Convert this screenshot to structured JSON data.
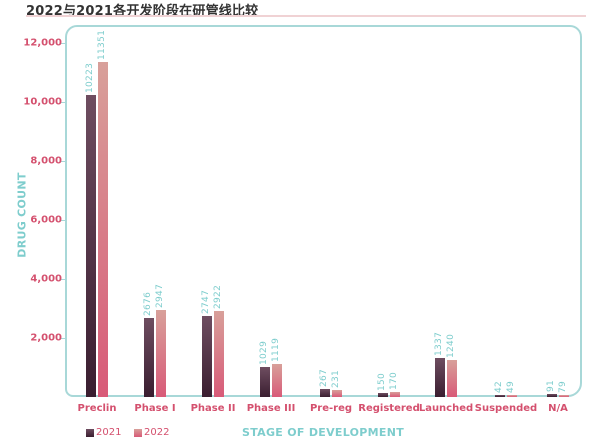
{
  "title": "2022与2021各开发阶段在研管线比较",
  "colors": {
    "series_2021": "#4a2a3e",
    "series_2022": "#d8848c",
    "axis_labels": "#d4506e",
    "value_labels": "#7ecdcd",
    "frame": "#a8d8d8"
  },
  "chart_data": {
    "type": "bar",
    "title": "2022与2021各开发阶段在研管线比较",
    "xlabel": "STAGE OF DEVELOPMENT",
    "ylabel": "DRUG COUNT",
    "ylim": [
      0,
      12000
    ],
    "yticks": [
      "2,000",
      "4,000",
      "6,000",
      "8,000",
      "10,000",
      "12,000"
    ],
    "categories": [
      "Preclin",
      "Phase I",
      "Phase II",
      "Phase III",
      "Pre-reg",
      "Registered",
      "Launched",
      "Suspended",
      "N/A"
    ],
    "series": [
      {
        "name": "2021",
        "values": [
          10223,
          2676,
          2747,
          1029,
          267,
          150,
          1337,
          42,
          91
        ]
      },
      {
        "name": "2022",
        "values": [
          11351,
          2947,
          2922,
          1119,
          231,
          170,
          1240,
          49,
          79
        ]
      }
    ],
    "legend_position": "bottom-left",
    "grid": false
  },
  "legend": {
    "items": [
      {
        "label": "2021"
      },
      {
        "label": "2022"
      }
    ]
  }
}
